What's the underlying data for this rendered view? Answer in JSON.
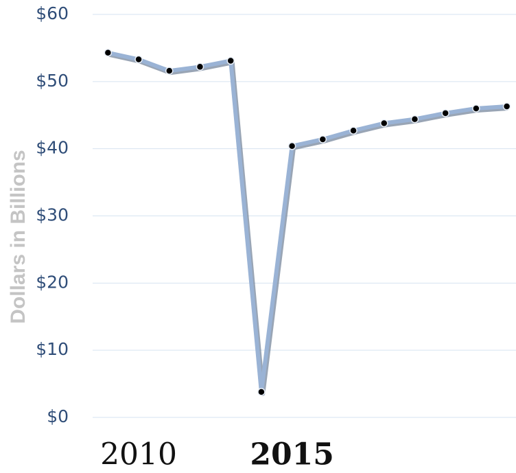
{
  "chart_data": {
    "type": "line",
    "y_label": "Dollars in Billions",
    "x": [
      2009,
      2010,
      2011,
      2012,
      2013,
      2014,
      2015,
      2016,
      2017,
      2018,
      2019,
      2020,
      2021,
      2022
    ],
    "series": [
      {
        "name": null,
        "color": "#9ab3d5",
        "values": [
          54.3,
          53.3,
          51.6,
          52.2,
          53.1,
          3.8,
          40.4,
          41.4,
          42.7,
          43.8,
          44.4,
          45.3,
          46.0,
          46.3
        ]
      }
    ],
    "xlim": [
      2008.5,
      2022.3
    ],
    "xticks": [
      2010,
      2015
    ],
    "ylim": [
      0,
      60
    ],
    "yticks": [
      {
        "value": 0,
        "label": "$0"
      },
      {
        "value": 10,
        "label": "$10"
      },
      {
        "value": 20,
        "label": "$20"
      },
      {
        "value": 30,
        "label": "$30"
      },
      {
        "value": 40,
        "label": "$40"
      },
      {
        "value": 50,
        "label": "$50"
      },
      {
        "value": 60,
        "label": "$60"
      }
    ],
    "grid": true
  }
}
